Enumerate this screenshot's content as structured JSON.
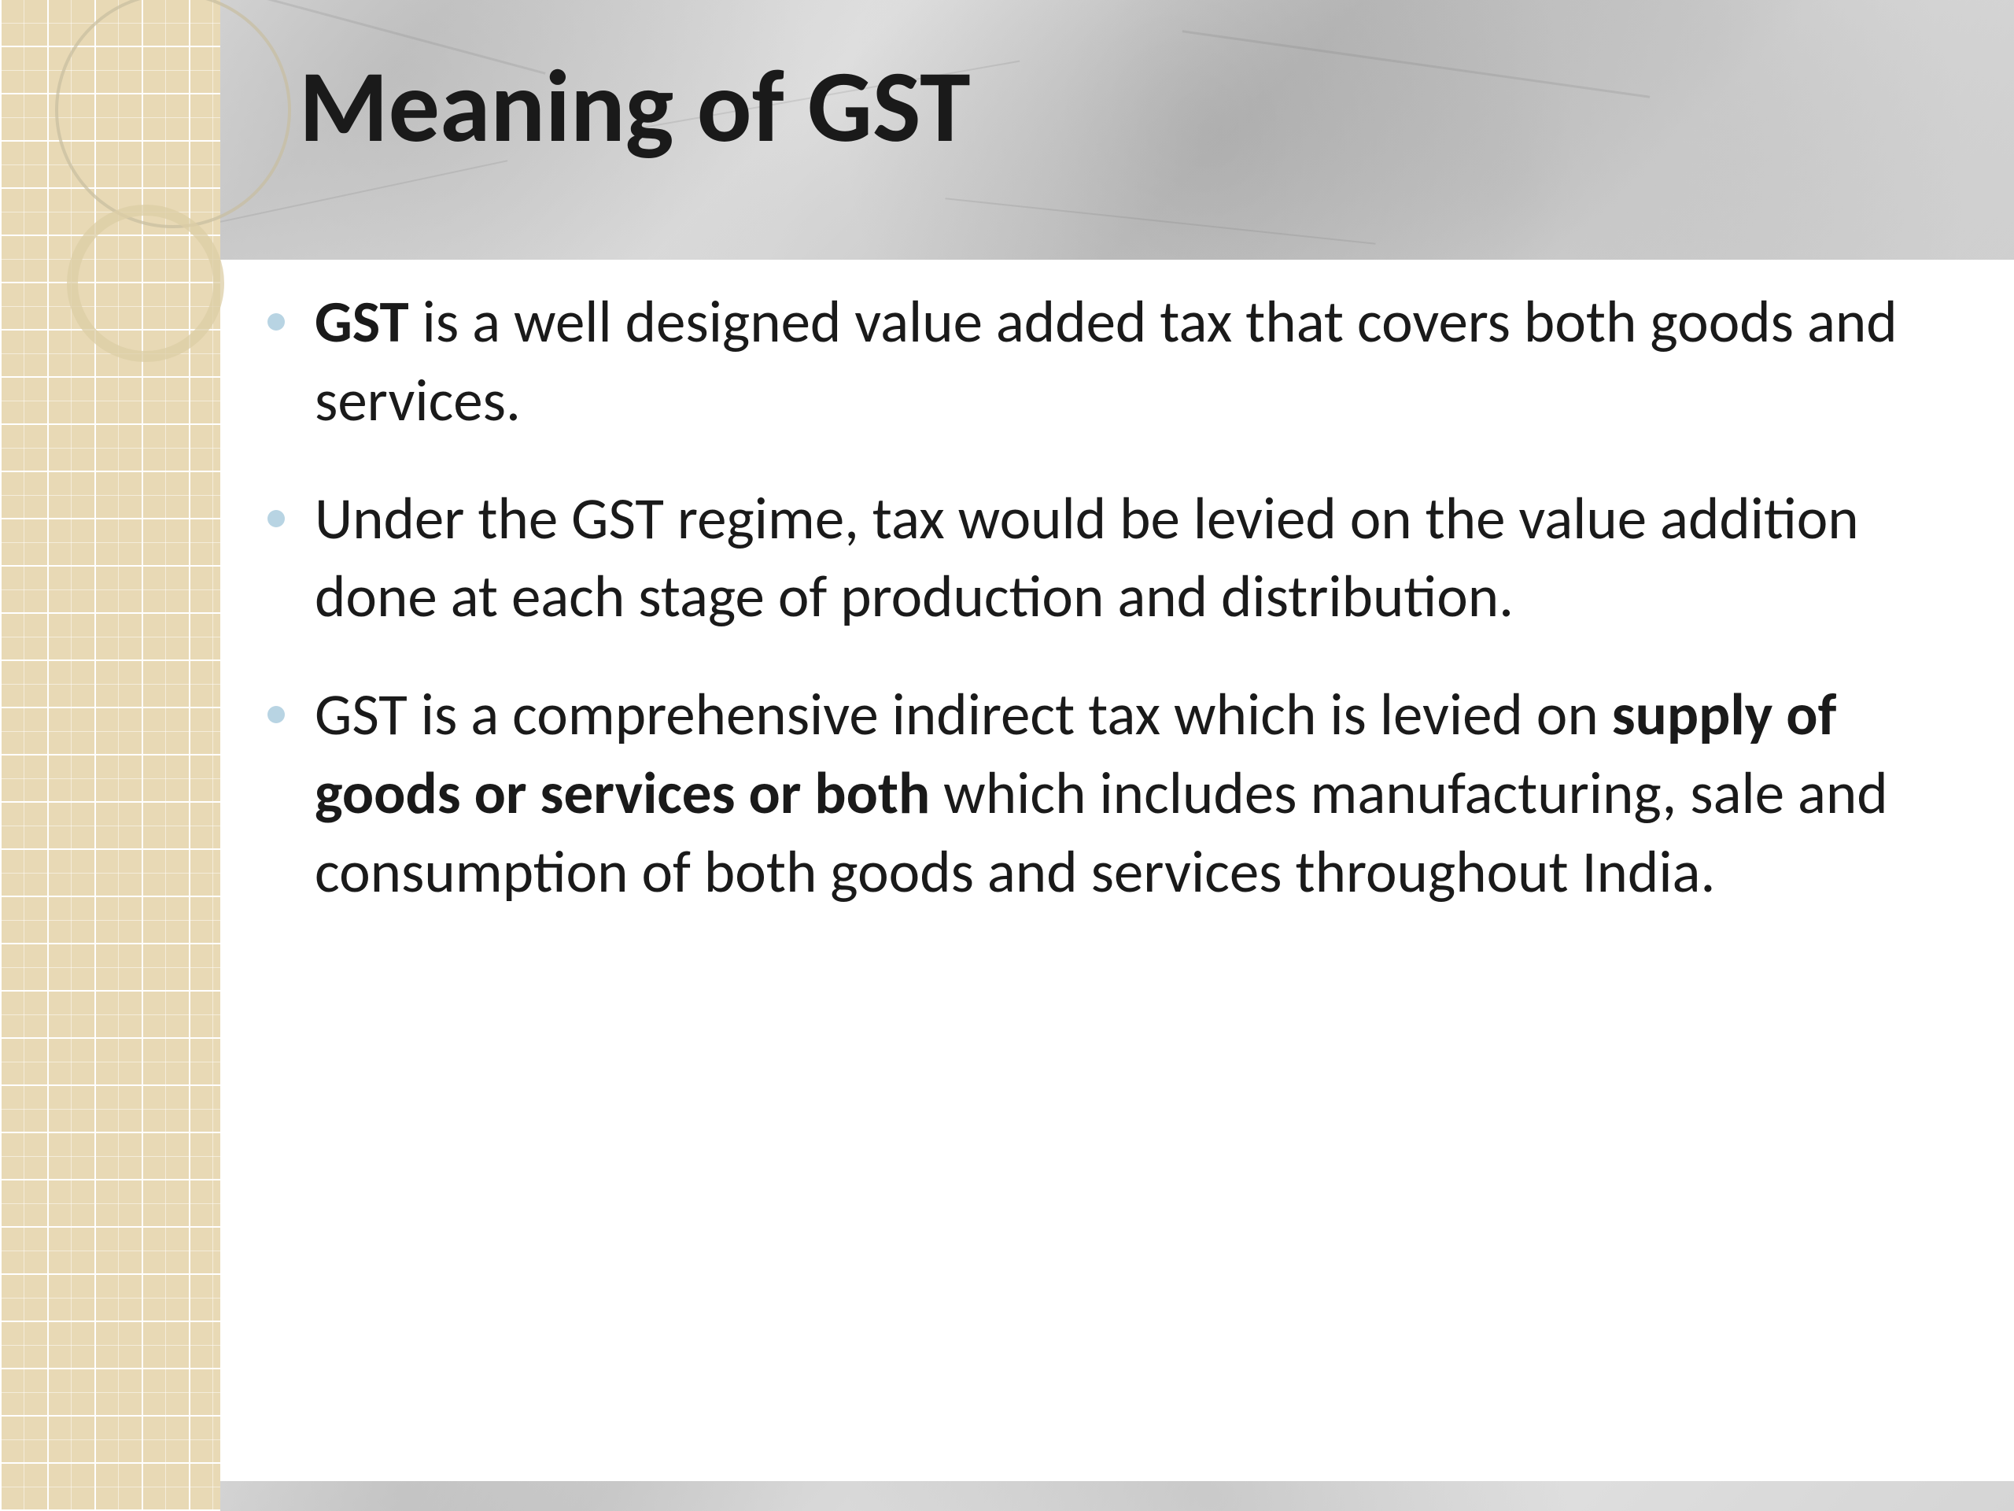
{
  "slide": {
    "title": "Meaning of GST",
    "title_color": "#1a1a1a",
    "title_fontsize": 130,
    "header_bg_colors": [
      "#e8e8e8",
      "#d0d0d0",
      "#e5e5e5",
      "#c8c8c8",
      "#e0e0e0",
      "#d5d5d5"
    ],
    "sidebar_bg_color": "#e8d9b5",
    "ring_outer_color": "rgba(200, 190, 160, 0.7)",
    "ring_inner_color": "rgba(220, 205, 165, 0.75)",
    "bullet_color": "#b8d4e3",
    "body_text_color": "#1a1a1a",
    "body_fontsize": 75,
    "bullets": [
      {
        "bold_lead": "GST",
        "text_after_bold": " is a well designed value added tax that covers both goods and services."
      },
      {
        "plain": "Under the GST regime, tax would be levied on the value addition done at each stage of production and distribution."
      },
      {
        "text_before_bold": "GST is a comprehensive indirect tax which is levied on ",
        "bold_mid": "supply of goods or services or both",
        "text_after_bold2": " which includes manufacturing, sale and consumption of both goods and services throughout India."
      }
    ]
  }
}
